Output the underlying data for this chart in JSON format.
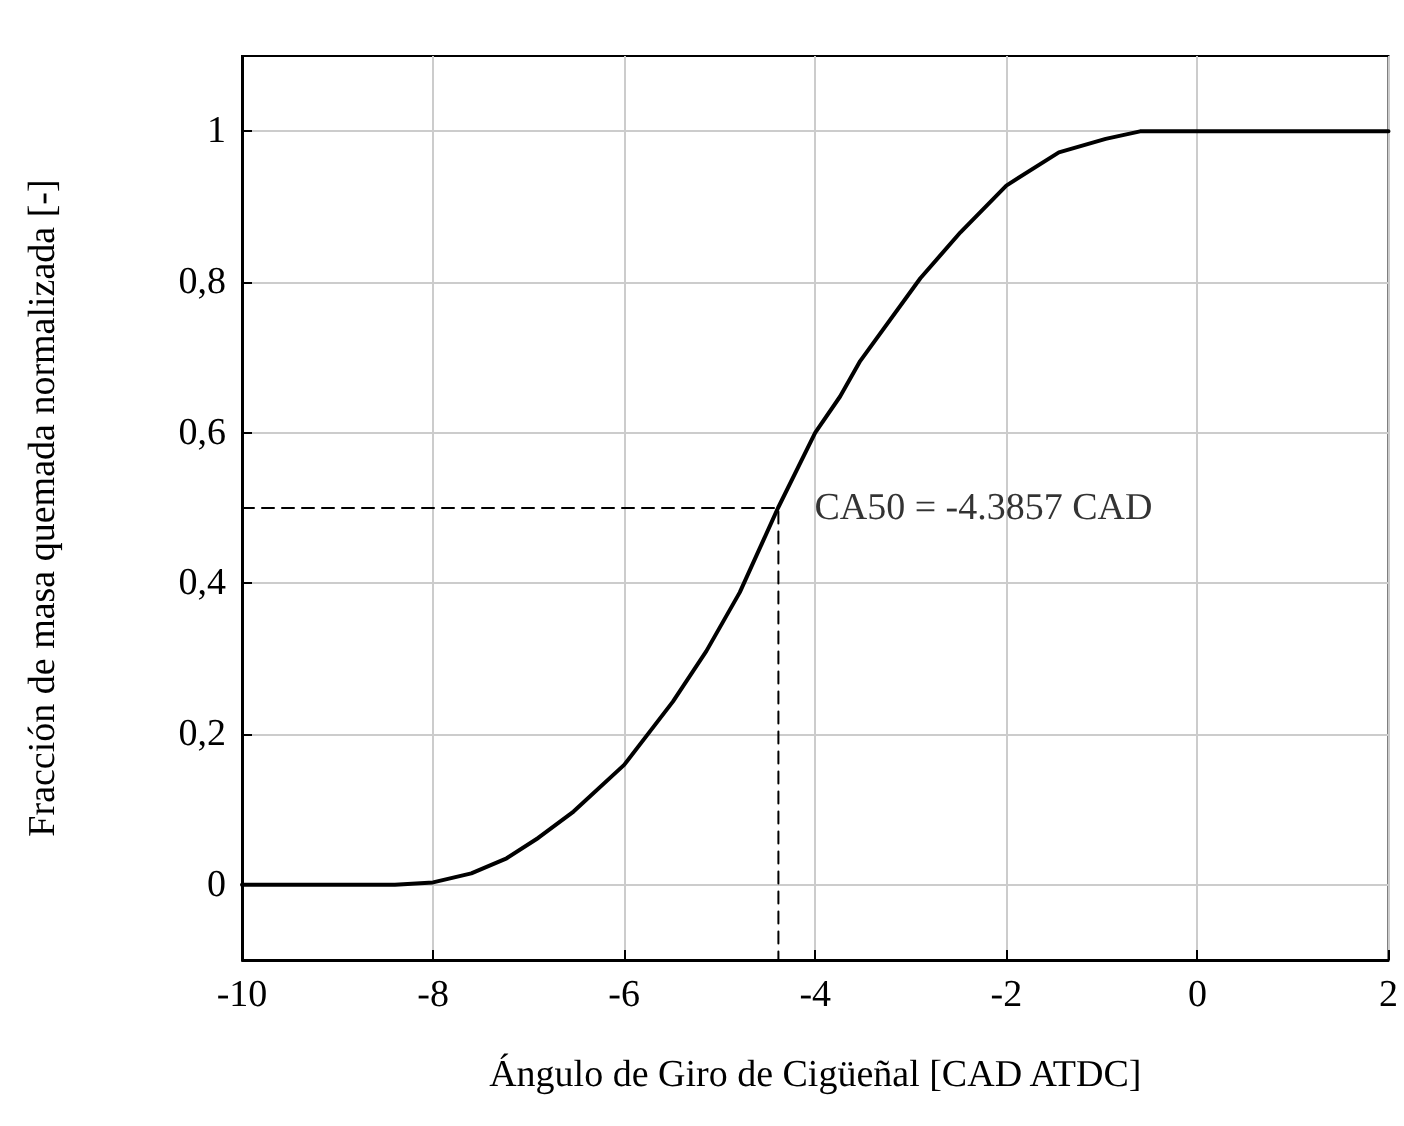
{
  "chart_data": {
    "type": "line",
    "xlabel": "Ángulo de Giro de Cigüeñal [CAD ATDC]",
    "ylabel": "Fracción de masa quemada normalizada [-]",
    "xlim": [
      -10,
      2
    ],
    "xticks": [
      -10,
      -8,
      -6,
      -4,
      -2,
      0,
      2
    ],
    "ylim": [
      -0.1,
      1.1
    ],
    "yticks": [
      {
        "value": 0,
        "label": "0"
      },
      {
        "value": 0.2,
        "label": "0,2"
      },
      {
        "value": 0.4,
        "label": "0,4"
      },
      {
        "value": 0.6,
        "label": "0,6"
      },
      {
        "value": 0.8,
        "label": "0,8"
      },
      {
        "value": 1,
        "label": "1"
      }
    ],
    "grid": true,
    "marker": "none",
    "series": [
      {
        "color": "#000000",
        "line_style": "solid",
        "x": [
          -10,
          -8.4,
          -8,
          -7.6,
          -7.23,
          -6.9,
          -6.53,
          -6,
          -5.49,
          -5.14,
          -4.79,
          -4.39,
          -4,
          -3.74,
          -3.53,
          -2.9,
          -2.48,
          -2,
          -1.45,
          -0.96,
          -0.6,
          0,
          1,
          2
        ],
        "values": [
          0,
          0,
          0.003,
          0.015,
          0.035,
          0.062,
          0.097,
          0.159,
          0.243,
          0.31,
          0.388,
          0.5,
          0.6,
          0.648,
          0.695,
          0.805,
          0.866,
          0.928,
          0.972,
          0.99,
          1,
          1,
          1,
          1
        ]
      },
      {
        "color": "#000000",
        "line_style": "dashed",
        "x": [
          -10,
          -4.3857,
          -4.3857
        ],
        "values": [
          0.5,
          0.5,
          -0.1
        ]
      }
    ],
    "annotations": [
      {
        "text": "CA50 = -4.3857 CAD",
        "x": -4.3857,
        "y": 0.5
      }
    ]
  }
}
